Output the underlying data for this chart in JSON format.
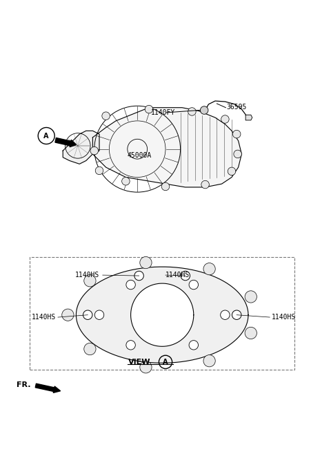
{
  "bg_color": "#ffffff",
  "line_color": "#000000",
  "upper_part_label": "45000A",
  "part_1140FY_label": "1140FY",
  "part_36595_label": "36595",
  "view_label": "VIEW",
  "fr_label": "FR.",
  "label_1140HS": "1140HS"
}
